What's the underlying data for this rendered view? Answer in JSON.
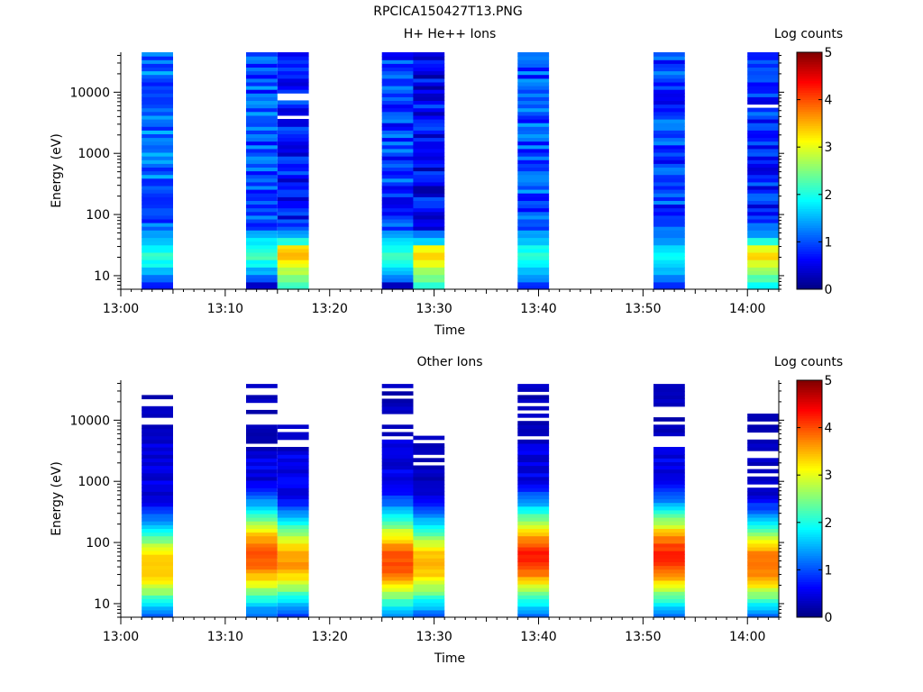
{
  "page": {
    "title": "RPCICA150427T13.PNG"
  },
  "colormap": {
    "name": "jet"
  },
  "chart_data": [
    {
      "type": "heatmap",
      "title": "H+ He++ Ions",
      "xlabel": "Time",
      "ylabel": "Energy (eV)",
      "yscale": "log",
      "ylim": [
        6,
        45000
      ],
      "xlim": [
        "13:00",
        "14:03"
      ],
      "x_ticks": [
        "13:00",
        "13:10",
        "13:20",
        "13:30",
        "13:40",
        "13:50",
        "14:00"
      ],
      "y_ticks": [
        "10",
        "100",
        "1000",
        "10000"
      ],
      "colorbar": {
        "label": "Log counts",
        "range": [
          0,
          5
        ],
        "ticks": [
          "0",
          "1",
          "2",
          "3",
          "4",
          "5"
        ]
      },
      "columns": [
        {
          "start": "13:02",
          "end": "13:05",
          "emax": 42000,
          "low": [
            0.8,
            1.2,
            1.6,
            1.9,
            2.1,
            1.8,
            1.6,
            1.4
          ],
          "bg": 1.1,
          "gaps": []
        },
        {
          "start": "13:12",
          "end": "13:15",
          "emax": 42000,
          "low": [
            0.3,
            1.1,
            1.5,
            1.9,
            2.2,
            2.0,
            1.8,
            1.5
          ],
          "bg": 1.0,
          "gaps": []
        },
        {
          "start": "13:15",
          "end": "13:18",
          "emax": 42000,
          "low": [
            2.2,
            2.5,
            2.8,
            3.1,
            3.5,
            3.3,
            2.0,
            1.4
          ],
          "bg": 0.7,
          "gaps": [
            4000,
            7500,
            9500
          ]
        },
        {
          "start": "13:25",
          "end": "13:28",
          "emax": 42000,
          "low": [
            0.3,
            1.2,
            1.6,
            2.0,
            2.2,
            1.9,
            1.7,
            1.4
          ],
          "bg": 0.9,
          "gaps": []
        },
        {
          "start": "13:28",
          "end": "13:31",
          "emax": 42000,
          "low": [
            2.1,
            2.4,
            2.7,
            3.0,
            3.4,
            3.1,
            1.7,
            1.2
          ],
          "bg": 0.6,
          "gaps": []
        },
        {
          "start": "13:38",
          "end": "13:41",
          "emax": 42000,
          "low": [
            0.8,
            1.3,
            1.6,
            1.9,
            2.1,
            1.9,
            1.6,
            1.4
          ],
          "bg": 1.0,
          "gaps": []
        },
        {
          "start": "13:51",
          "end": "13:54",
          "emax": 42000,
          "low": [
            0.8,
            1.2,
            1.5,
            1.7,
            1.9,
            1.7,
            1.4,
            1.2
          ],
          "bg": 0.9,
          "gaps": []
        },
        {
          "start": "14:00",
          "end": "14:03",
          "emax": 42000,
          "low": [
            1.9,
            2.3,
            2.6,
            3.0,
            3.3,
            3.0,
            2.1,
            1.4
          ],
          "bg": 0.8,
          "gaps": [
            6000
          ]
        }
      ]
    },
    {
      "type": "heatmap",
      "title": "Other Ions",
      "xlabel": "Time",
      "ylabel": "Energy (eV)",
      "yscale": "log",
      "ylim": [
        6,
        45000
      ],
      "xlim": [
        "13:00",
        "14:03"
      ],
      "x_ticks": [
        "13:00",
        "13:10",
        "13:20",
        "13:30",
        "13:40",
        "13:50",
        "14:00"
      ],
      "y_ticks": [
        "10",
        "100",
        "1000",
        "10000"
      ],
      "colorbar": {
        "label": "Log counts",
        "range": [
          0,
          5
        ],
        "ticks": [
          "0",
          "1",
          "2",
          "3",
          "4",
          "5"
        ]
      },
      "columns": [
        {
          "start": "13:02",
          "end": "13:05",
          "peak": 3.4,
          "peakE": 40,
          "width": 0.55,
          "floorE": 6,
          "solidTop": 6500,
          "stripeTop": 33000
        },
        {
          "start": "13:12",
          "end": "13:15",
          "peak": 4.0,
          "peakE": 60,
          "width": 0.6,
          "floorE": 6,
          "solidTop": 3000,
          "stripeTop": 38000
        },
        {
          "start": "13:15",
          "end": "13:18",
          "peak": 3.6,
          "peakE": 50,
          "width": 0.55,
          "floorE": 6,
          "solidTop": 3000,
          "stripeTop": 8000
        },
        {
          "start": "13:25",
          "end": "13:28",
          "peak": 4.0,
          "peakE": 50,
          "width": 0.6,
          "floorE": 6,
          "solidTop": 4800,
          "stripeTop": 38000
        },
        {
          "start": "13:28",
          "end": "13:31",
          "peak": 3.5,
          "peakE": 45,
          "width": 0.55,
          "floorE": 6,
          "solidTop": 800,
          "stripeTop": 7500
        },
        {
          "start": "13:38",
          "end": "13:41",
          "peak": 4.2,
          "peakE": 60,
          "width": 0.6,
          "floorE": 6,
          "solidTop": 4500,
          "stripeTop": 40000
        },
        {
          "start": "13:51",
          "end": "13:54",
          "peak": 4.2,
          "peakE": 60,
          "width": 0.6,
          "floorE": 6,
          "solidTop": 3800,
          "stripeTop": 40000
        },
        {
          "start": "14:00",
          "end": "14:03",
          "peak": 3.9,
          "peakE": 45,
          "width": 0.55,
          "floorE": 6,
          "solidTop": 600,
          "stripeTop": 17000
        }
      ]
    }
  ]
}
